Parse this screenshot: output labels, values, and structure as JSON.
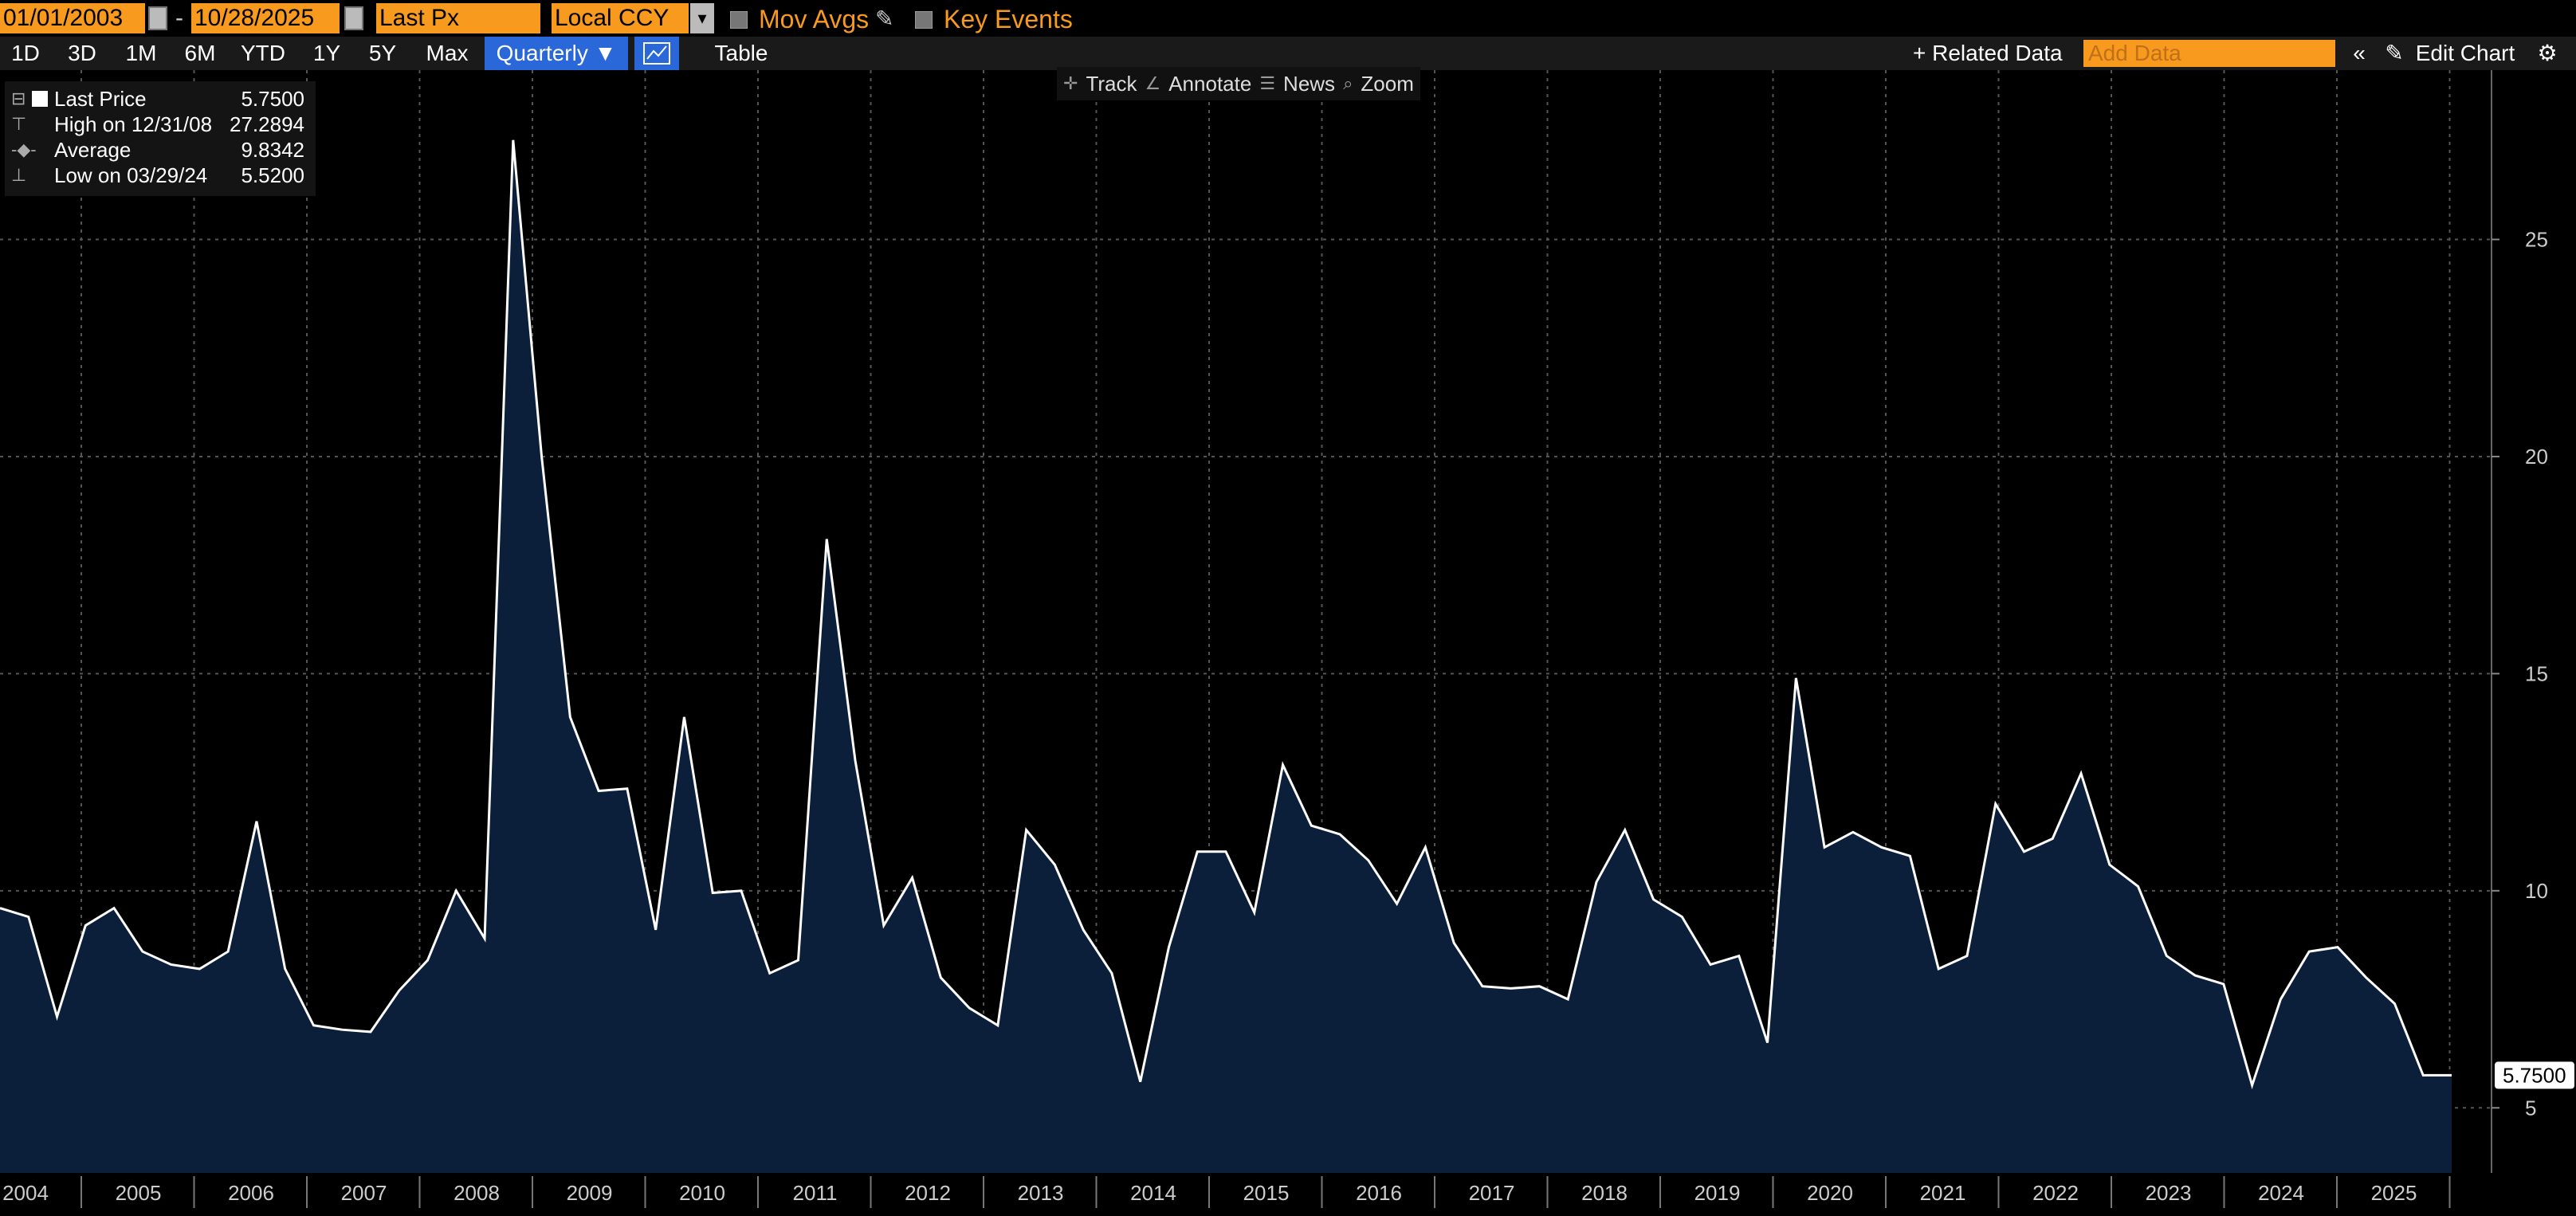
{
  "header": {
    "start_date": "01/01/2003",
    "end_date": "10/28/2025",
    "date_separator": "-",
    "field": "Last Px",
    "currency": "Local CCY",
    "mov_avgs": "Mov Avgs",
    "key_events": "Key Events"
  },
  "periods": [
    "1D",
    "3D",
    "1M",
    "6M",
    "YTD",
    "1Y",
    "5Y",
    "Max"
  ],
  "frequency": "Quarterly ▼",
  "table_label": "Table",
  "related_data": "+ Related Data",
  "add_data_placeholder": "Add Data",
  "edit_chart": "Edit Chart",
  "chart_tools": [
    "Track",
    "Annotate",
    "News",
    "Zoom"
  ],
  "legend": {
    "last_price_label": "Last Price",
    "last_price_value": "5.7500",
    "high_label": "High on 12/31/08",
    "high_value": "27.2894",
    "average_label": "Average",
    "average_value": "9.8342",
    "low_label": "Low on 03/29/24",
    "low_value": "5.5200"
  },
  "last_value_tag": "5.7500",
  "colors": {
    "accent": "#f79a1e",
    "fill": "#0b1e3a",
    "line": "#ffffff",
    "selected": "#2a67d8"
  },
  "chart_data": {
    "type": "area",
    "x_start": "2003-Q4",
    "frequency": "quarterly",
    "ylim": [
      3.5,
      28.9
    ],
    "y_ticks": [
      5,
      10,
      15,
      20,
      25
    ],
    "x_tick_labels": [
      "2004",
      "2005",
      "2006",
      "2007",
      "2008",
      "2009",
      "2010",
      "2011",
      "2012",
      "2013",
      "2014",
      "2015",
      "2016",
      "2017",
      "2018",
      "2019",
      "2020",
      "2021",
      "2022",
      "2023",
      "2024",
      "2025"
    ],
    "grid": true,
    "values": [
      9.6,
      9.4,
      7.1,
      9.2,
      9.6,
      8.6,
      8.3,
      8.2,
      8.6,
      11.6,
      8.2,
      6.9,
      6.8,
      6.75,
      7.7,
      8.4,
      10.0,
      8.9,
      27.2894,
      20.0,
      14.0,
      12.3,
      12.35,
      9.1,
      14.0,
      9.95,
      10.0,
      8.1,
      8.4,
      18.1,
      13.0,
      9.2,
      10.3,
      8.0,
      7.3,
      6.9,
      11.4,
      10.6,
      9.1,
      8.1,
      5.6,
      8.7,
      10.9,
      10.9,
      9.5,
      12.9,
      11.5,
      11.3,
      10.7,
      9.7,
      11.0,
      8.8,
      7.8,
      7.75,
      7.8,
      7.5,
      10.2,
      11.4,
      9.8,
      9.4,
      8.3,
      8.5,
      6.5,
      14.9,
      11.0,
      11.35,
      11.0,
      10.8,
      8.2,
      8.5,
      12.0,
      10.9,
      11.2,
      12.7,
      10.6,
      10.1,
      8.5,
      8.05,
      7.85,
      5.52,
      7.5,
      8.6,
      8.7,
      8.0,
      7.4,
      5.75,
      5.75
    ],
    "last_value": 5.75,
    "high": 27.2894,
    "average": 9.8342,
    "low": 5.52
  }
}
